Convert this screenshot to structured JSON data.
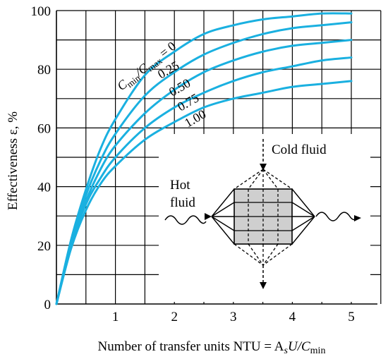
{
  "chart_data": {
    "type": "line",
    "xlabel": "Number of transfer units NTU = A",
    "xlabel_sub_s": "s",
    "xlabel_mid": "U/C",
    "xlabel_sub_min": "min",
    "ylabel": "Effectiveness ε, %",
    "xlim": [
      0,
      5.5
    ],
    "ylim": [
      0,
      100
    ],
    "x_ticks": [
      1,
      2,
      3,
      4,
      5
    ],
    "y_ticks": [
      0,
      20,
      40,
      60,
      80,
      100
    ],
    "grid": true,
    "line_color": "#1ab0e0",
    "curve_label_prefix": "C",
    "curve_label_sub_min": "min",
    "curve_label_mid": "/C",
    "curve_label_sub_max": "max",
    "curve_label_eq": " = 0",
    "series": [
      {
        "name": "0",
        "x": [
          0,
          0.25,
          0.5,
          0.75,
          1.0,
          1.5,
          2.0,
          2.5,
          3.0,
          3.5,
          4.0,
          4.5,
          5.0
        ],
        "y": [
          0,
          22,
          39,
          53,
          63,
          78,
          86,
          92,
          95,
          97,
          98,
          99,
          99
        ]
      },
      {
        "name": "0.25",
        "x": [
          0,
          0.25,
          0.5,
          0.75,
          1.0,
          1.5,
          2.0,
          2.5,
          3.0,
          3.5,
          4.0,
          4.5,
          5.0
        ],
        "y": [
          0,
          21,
          37,
          49,
          58,
          71,
          79,
          85,
          89,
          92,
          94,
          95,
          96
        ]
      },
      {
        "name": "0.50",
        "x": [
          0,
          0.25,
          0.5,
          0.75,
          1.0,
          1.5,
          2.0,
          2.5,
          3.0,
          3.5,
          4.0,
          4.5,
          5.0
        ],
        "y": [
          0,
          20,
          35,
          46,
          54,
          65,
          73,
          79,
          83,
          86,
          88,
          89,
          90
        ]
      },
      {
        "name": "0.75",
        "x": [
          0,
          0.25,
          0.5,
          0.75,
          1.0,
          1.5,
          2.0,
          2.5,
          3.0,
          3.5,
          4.0,
          4.5,
          5.0
        ],
        "y": [
          0,
          20,
          34,
          43,
          50,
          60,
          67,
          72,
          76,
          79,
          81,
          83,
          84
        ]
      },
      {
        "name": "1.00",
        "x": [
          0,
          0.25,
          0.5,
          0.75,
          1.0,
          1.5,
          2.0,
          2.5,
          3.0,
          3.5,
          4.0,
          4.5,
          5.0
        ],
        "y": [
          0,
          19,
          32,
          41,
          47,
          56,
          62,
          67,
          70,
          72,
          74,
          75,
          76
        ]
      }
    ]
  },
  "inset": {
    "cold_fluid_label": "Cold fluid",
    "hot_fluid_label_line1": "Hot",
    "hot_fluid_label_line2": "fluid"
  }
}
